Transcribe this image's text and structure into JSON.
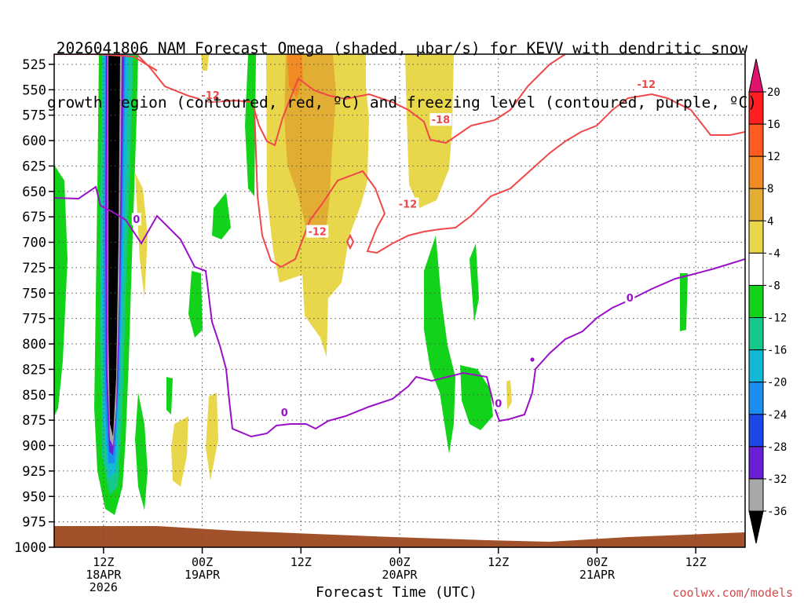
{
  "chart_data": {
    "type": "heatmap",
    "title_lines": [
      "2026041806 NAM Forecast Omega (shaded, μbar/s) for KEVV with dendritic snow",
      "growth region (contoured, red, ºC) and freezing level (contoured, purple, ºC)"
    ],
    "xlabel": "Forecast Time (UTC)",
    "ylabel": "",
    "y_ticks": [
      "525",
      "550",
      "575",
      "600",
      "625",
      "650",
      "675",
      "700",
      "725",
      "750",
      "775",
      "800",
      "825",
      "850",
      "875",
      "900",
      "925",
      "950",
      "975",
      "1000"
    ],
    "x_ticks": [
      {
        "time": "2026-04-18 12Z",
        "lines": [
          "12Z",
          "18APR",
          "2026"
        ]
      },
      {
        "time": "2026-04-19 00Z",
        "lines": [
          "00Z",
          "19APR"
        ]
      },
      {
        "time": "2026-04-19 12Z",
        "lines": [
          "12Z"
        ]
      },
      {
        "time": "2026-04-20 00Z",
        "lines": [
          "00Z",
          "20APR"
        ]
      },
      {
        "time": "2026-04-20 12Z",
        "lines": [
          "12Z"
        ]
      },
      {
        "time": "2026-04-21 00Z",
        "lines": [
          "00Z",
          "21APR"
        ]
      },
      {
        "time": "2026-04-21 12Z",
        "lines": [
          "12Z"
        ]
      }
    ],
    "xlim": [
      "2026-04-18 06Z",
      "2026-04-21 18Z"
    ],
    "ylim_hpa": [
      1000,
      515
    ],
    "grid": true,
    "colorbar": {
      "labels": [
        "20",
        "16",
        "12",
        "8",
        "4",
        "-4",
        "-8",
        "-12",
        "-16",
        "-20",
        "-24",
        "-28",
        "-32",
        "-36"
      ],
      "colors": [
        "#ff1f1f",
        "#ff5a1f",
        "#f08a22",
        "#e2ad33",
        "#e8d74b",
        "#ffffff",
        "#12d21a",
        "#16c98a",
        "#12b9d6",
        "#1a8ef0",
        "#1c46e6",
        "#6a1ed6",
        "#a21ad0",
        "#a8a8a8"
      ],
      "top_arrow_color": "#e0146e",
      "bottom_arrow_color": "#000000"
    },
    "contour_labels": [
      {
        "text": "-12",
        "color": "#f04848",
        "time": "2026-04-19 01Z",
        "hpa": 556
      },
      {
        "text": "-12",
        "color": "#f04848",
        "time": "2026-04-19 14Z",
        "hpa": 690
      },
      {
        "text": "-18",
        "color": "#f04848",
        "time": "2026-04-20 05Z",
        "hpa": 580
      },
      {
        "text": "-12",
        "color": "#f04848",
        "time": "2026-04-20 01Z",
        "hpa": 663
      },
      {
        "text": "-12",
        "color": "#f04848",
        "time": "2026-04-21 06Z",
        "hpa": 545
      },
      {
        "text": "0",
        "color": "#9a10c8",
        "time": "2026-04-18 16Z",
        "hpa": 678
      },
      {
        "text": "0",
        "color": "#9a10c8",
        "time": "2026-04-19 10Z",
        "hpa": 868
      },
      {
        "text": "0",
        "color": "#9a10c8",
        "time": "2026-04-20 12Z",
        "hpa": 859
      },
      {
        "text": "0",
        "color": "#9a10c8",
        "time": "2026-04-21 04Z",
        "hpa": 755
      }
    ],
    "colors": {
      "freezing_level": "#9a10c8",
      "dgz": "#f04848",
      "ground": "#a2522a"
    }
  },
  "watermark": "coolwx.com/models"
}
